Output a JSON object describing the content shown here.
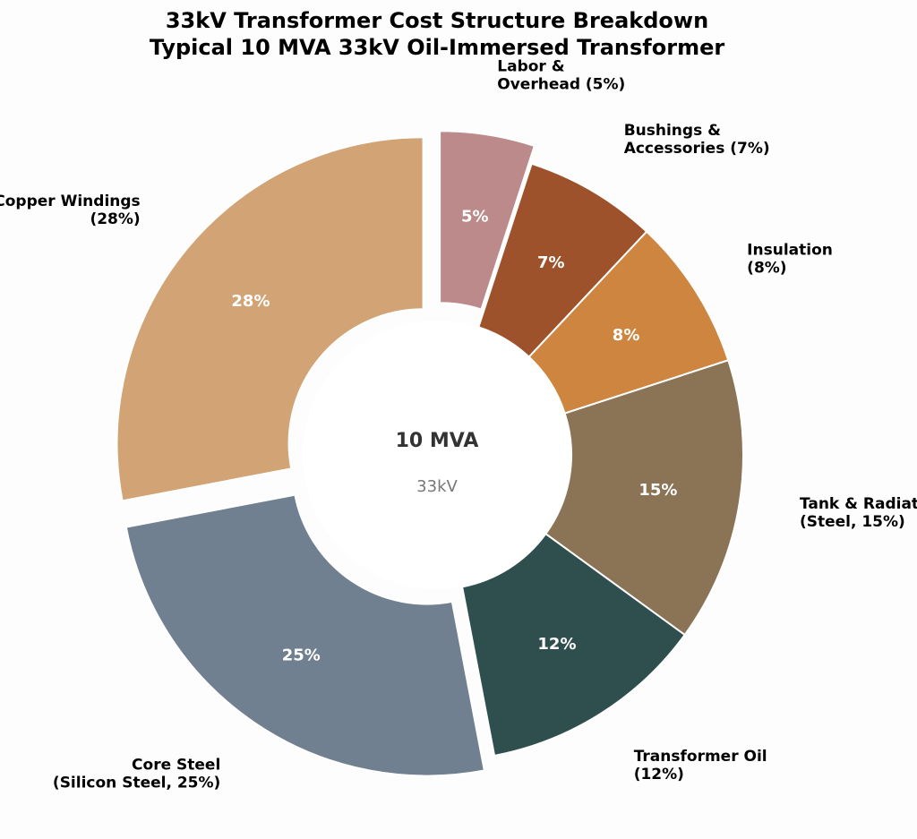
{
  "chart_data": {
    "type": "pie",
    "title": [
      "33kV Transformer Cost Structure Breakdown",
      "Typical 10 MVA 33kV Oil-Immersed Transformer"
    ],
    "center_text": {
      "main": "10 MVA",
      "sub": "33kV"
    },
    "slices": [
      {
        "label": [
          "Labor &",
          "Overhead (5%)"
        ],
        "value": 5,
        "pct_label": "5%",
        "color": "#bc8a8a",
        "exploded": true
      },
      {
        "label": [
          "Bushings &",
          "Accessories (7%)"
        ],
        "value": 7,
        "pct_label": "7%",
        "color": "#9e522c",
        "exploded": false
      },
      {
        "label": [
          "Insulation",
          "(8%)"
        ],
        "value": 8,
        "pct_label": "8%",
        "color": "#cd853f",
        "exploded": false
      },
      {
        "label": [
          "Tank & Radiator",
          "(Steel, 15%)"
        ],
        "value": 15,
        "pct_label": "15%",
        "color": "#8b7355",
        "exploded": false
      },
      {
        "label": [
          "Transformer Oil",
          "(12%)"
        ],
        "value": 12,
        "pct_label": "12%",
        "color": "#2f4f4f",
        "exploded": false
      },
      {
        "label": [
          "Core Steel",
          "(Silicon Steel, 25%)"
        ],
        "value": 25,
        "pct_label": "25%",
        "color": "#708090",
        "exploded": true
      },
      {
        "label": [
          "Copper Windings",
          "(28%)"
        ],
        "value": 28,
        "pct_label": "28%",
        "color": "#d2a374",
        "exploded": true
      }
    ],
    "legend": "none",
    "start_angle": "12 o'clock",
    "direction": "clockwise"
  }
}
